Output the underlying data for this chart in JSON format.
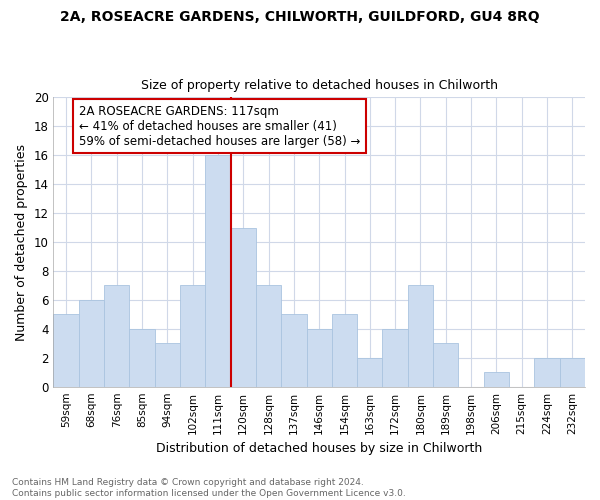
{
  "title": "2A, ROSEACRE GARDENS, CHILWORTH, GUILDFORD, GU4 8RQ",
  "subtitle": "Size of property relative to detached houses in Chilworth",
  "xlabel": "Distribution of detached houses by size in Chilworth",
  "ylabel": "Number of detached properties",
  "categories": [
    "59sqm",
    "68sqm",
    "76sqm",
    "85sqm",
    "94sqm",
    "102sqm",
    "111sqm",
    "120sqm",
    "128sqm",
    "137sqm",
    "146sqm",
    "154sqm",
    "163sqm",
    "172sqm",
    "180sqm",
    "189sqm",
    "198sqm",
    "206sqm",
    "215sqm",
    "224sqm",
    "232sqm"
  ],
  "values": [
    5,
    6,
    7,
    4,
    3,
    7,
    16,
    11,
    7,
    5,
    4,
    5,
    2,
    4,
    7,
    3,
    0,
    1,
    0,
    2,
    2
  ],
  "bar_color": "#ccdcf0",
  "bar_edge_color": "#aac4e0",
  "vline_x": 7,
  "vline_color": "#cc0000",
  "annotation_text": "2A ROSEACRE GARDENS: 117sqm\n← 41% of detached houses are smaller (41)\n59% of semi-detached houses are larger (58) →",
  "annotation_box_color": "#ffffff",
  "annotation_box_edge": "#cc0000",
  "ylim": [
    0,
    20
  ],
  "yticks": [
    0,
    2,
    4,
    6,
    8,
    10,
    12,
    14,
    16,
    18,
    20
  ],
  "bg_color": "#ffffff",
  "plot_bg_color": "#ffffff",
  "grid_color": "#d0d8e8",
  "footnote": "Contains HM Land Registry data © Crown copyright and database right 2024.\nContains public sector information licensed under the Open Government Licence v3.0."
}
